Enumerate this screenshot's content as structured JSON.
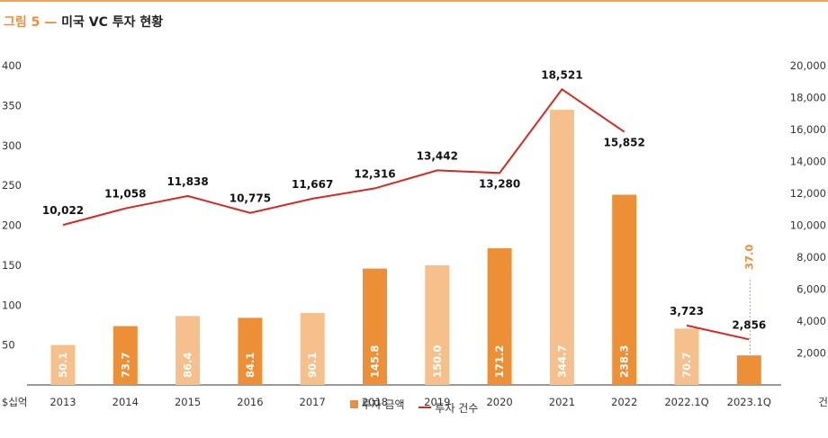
{
  "figure": {
    "number": "그림 5",
    "dash": "—",
    "title": "미국 VC 투자 현황"
  },
  "colors": {
    "accent": "#ec8f37",
    "bar_dark": "#ec8f37",
    "bar_light": "#f5c08c",
    "line": "#d42a1f",
    "axis": "#333333",
    "top_rule": "#f2a255"
  },
  "chart_data": {
    "type": "bar",
    "categories": [
      "2013",
      "2014",
      "2015",
      "2016",
      "2017",
      "2018",
      "2019",
      "2020",
      "2021",
      "2022",
      "2022.1Q",
      "2023.1Q"
    ],
    "bar_shades": [
      "light",
      "dark",
      "light",
      "dark",
      "light",
      "dark",
      "light",
      "dark",
      "light",
      "dark",
      "light",
      "dark"
    ],
    "series": [
      {
        "name": "투자 금액",
        "kind": "bar",
        "axis": "left",
        "values": [
          50.1,
          73.7,
          86.4,
          84.1,
          90.1,
          145.8,
          150.0,
          171.2,
          344.7,
          238.3,
          70.7,
          37.0
        ],
        "labels": [
          "50.1",
          "73.7",
          "86.4",
          "84.1",
          "90.1",
          "145.8",
          "150.0",
          "171.2",
          "344.7",
          "238.3",
          "70.7",
          "37.0"
        ]
      },
      {
        "name": "투자 건수",
        "kind": "line",
        "axis": "right",
        "segments": [
          [
            0,
            9
          ],
          [
            10,
            11
          ]
        ],
        "values": [
          10022,
          11058,
          11838,
          10775,
          11667,
          12316,
          13442,
          13280,
          18521,
          15852,
          3723,
          2856
        ],
        "labels": [
          "10,022",
          "11,058",
          "11,838",
          "10,775",
          "11,667",
          "12,316",
          "13,442",
          "13,280",
          "18,521",
          "15,852",
          "3,723",
          "2,856"
        ]
      }
    ],
    "left_axis": {
      "unit": "$십억",
      "ticks": [
        "400",
        "350",
        "300",
        "250",
        "200",
        "150",
        "100",
        "50"
      ],
      "ylim": [
        0,
        400
      ]
    },
    "right_axis": {
      "unit": "건",
      "ticks": [
        "20,000",
        "18,000",
        "16,000",
        "14,000",
        "12,000",
        "10,000",
        "8,000",
        "6,000",
        "4,000",
        "2,000"
      ],
      "ylim": [
        0,
        20000
      ]
    },
    "grid": false,
    "legend_position": "bottom-center"
  }
}
